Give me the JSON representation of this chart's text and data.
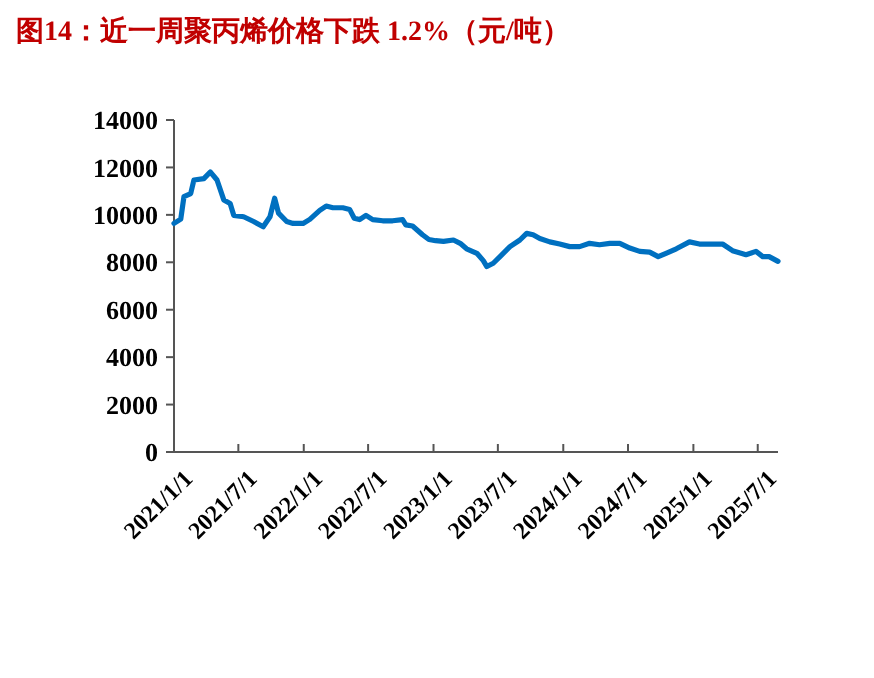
{
  "chart_data": {
    "type": "line",
    "title": "图14：近一周聚丙烯价格下跌 1.2%（元/吨）",
    "xlim": [
      "2021-01-01",
      "2025-08-27"
    ],
    "xticks": [
      {
        "value": "2021-01-01",
        "label": "2021/1/1"
      },
      {
        "value": "2021-07-01",
        "label": "2021/7/1"
      },
      {
        "value": "2022-01-01",
        "label": "2022/1/1"
      },
      {
        "value": "2022-07-01",
        "label": "2022/7/1"
      },
      {
        "value": "2023-01-01",
        "label": "2023/1/1"
      },
      {
        "value": "2023-07-01",
        "label": "2023/7/1"
      },
      {
        "value": "2024-01-01",
        "label": "2024/1/1"
      },
      {
        "value": "2024-07-01",
        "label": "2024/7/1"
      },
      {
        "value": "2025-01-01",
        "label": "2025/1/1"
      },
      {
        "value": "2025-07-01",
        "label": "2025/7/1"
      }
    ],
    "ylim": [
      0,
      14000
    ],
    "yticks": [
      0,
      2000,
      4000,
      6000,
      8000,
      10000,
      12000,
      14000
    ],
    "grid": false,
    "marker": "none",
    "line_style": "solid",
    "series": [
      {
        "color": "#0070c0",
        "x": [
          "2021-01-01",
          "2021-01-20",
          "2021-01-29",
          "2021-02-17",
          "2021-02-26",
          "2021-03-26",
          "2021-04-13",
          "2021-05-02",
          "2021-05-21",
          "2021-06-08",
          "2021-06-18",
          "2021-07-16",
          "2021-08-13",
          "2021-09-09",
          "2021-09-28",
          "2021-10-11",
          "2021-10-22",
          "2021-11-14",
          "2021-12-02",
          "2021-12-30",
          "2022-01-18",
          "2022-02-15",
          "2022-03-05",
          "2022-03-24",
          "2022-04-21",
          "2022-05-10",
          "2022-05-23",
          "2022-06-07",
          "2022-06-25",
          "2022-07-14",
          "2022-08-11",
          "2022-09-08",
          "2022-10-06",
          "2022-10-15",
          "2022-11-03",
          "2022-12-01",
          "2022-12-19",
          "2023-01-07",
          "2023-01-29",
          "2023-02-26",
          "2023-03-17",
          "2023-04-04",
          "2023-05-03",
          "2023-05-21",
          "2023-05-31",
          "2023-06-18",
          "2023-07-07",
          "2023-08-04",
          "2023-09-01",
          "2023-09-20",
          "2023-10-08",
          "2023-10-27",
          "2023-11-24",
          "2023-12-22",
          "2024-01-19",
          "2024-02-16",
          "2024-03-15",
          "2024-04-12",
          "2024-05-11",
          "2024-06-08",
          "2024-07-06",
          "2024-08-03",
          "2024-08-31",
          "2024-09-24",
          "2024-10-16",
          "2024-11-14",
          "2024-12-21",
          "2025-01-18",
          "2025-02-24",
          "2025-03-24",
          "2025-04-21",
          "2025-05-29",
          "2025-06-26",
          "2025-07-15",
          "2025-08-02",
          "2025-08-27"
        ],
        "values": [
          9640,
          9820,
          10770,
          10900,
          11470,
          11530,
          11810,
          11470,
          10630,
          10480,
          9980,
          9920,
          9720,
          9500,
          9920,
          10700,
          10070,
          9720,
          9640,
          9640,
          9810,
          10190,
          10370,
          10300,
          10300,
          10230,
          9860,
          9800,
          9980,
          9800,
          9750,
          9750,
          9800,
          9580,
          9530,
          9160,
          8960,
          8910,
          8880,
          8940,
          8800,
          8570,
          8380,
          8070,
          7820,
          7960,
          8240,
          8660,
          8940,
          9220,
          9160,
          9000,
          8860,
          8770,
          8660,
          8660,
          8800,
          8740,
          8800,
          8800,
          8600,
          8460,
          8430,
          8240,
          8380,
          8570,
          8860,
          8770,
          8770,
          8770,
          8490,
          8320,
          8460,
          8240,
          8240,
          8040
        ]
      }
    ]
  }
}
